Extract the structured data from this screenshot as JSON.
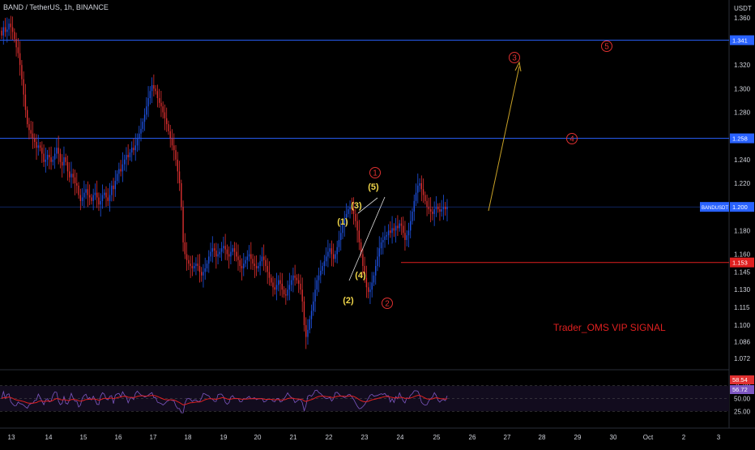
{
  "header": {
    "symbol": "BAND / TetherUS, 1h, BINANCE",
    "currency": "USDT"
  },
  "chart_data": {
    "type": "candlestick",
    "price_axis": {
      "ticks": [
        "1.360",
        "1.320",
        "1.300",
        "1.280",
        "1.240",
        "1.220",
        "1.180",
        "1.160",
        "1.145",
        "1.130",
        "1.115",
        "1.100",
        "1.086",
        "1.072"
      ],
      "range": [
        1.065,
        1.375
      ]
    },
    "x_axis": {
      "ticks": [
        "13",
        "14",
        "15",
        "16",
        "17",
        "18",
        "19",
        "20",
        "21",
        "22",
        "23",
        "24",
        "25",
        "26",
        "27",
        "28",
        "29",
        "30",
        "Oct",
        "2",
        "3"
      ]
    },
    "series": [
      {
        "name": "BAND/USDT",
        "close": [
          1.345,
          1.352,
          1.348,
          1.35,
          1.355,
          1.352,
          1.348,
          1.342,
          1.335,
          1.33,
          1.32,
          1.308,
          1.295,
          1.282,
          1.27,
          1.265,
          1.262,
          1.258,
          1.255,
          1.25,
          1.252,
          1.25,
          1.245,
          1.238,
          1.24,
          1.244,
          1.242,
          1.238,
          1.24,
          1.245,
          1.25,
          1.245,
          1.238,
          1.235,
          1.242,
          1.238,
          1.23,
          1.225,
          1.228,
          1.225,
          1.22,
          1.218,
          1.21,
          1.205,
          1.208,
          1.212,
          1.215,
          1.21,
          1.208,
          1.205,
          1.21,
          1.212,
          1.208,
          1.202,
          1.205,
          1.21,
          1.212,
          1.208,
          1.205,
          1.21,
          1.218,
          1.215,
          1.222,
          1.228,
          1.232,
          1.23,
          1.236,
          1.24,
          1.244,
          1.242,
          1.246,
          1.25,
          1.248,
          1.252,
          1.258,
          1.262,
          1.266,
          1.272,
          1.278,
          1.285,
          1.292,
          1.298,
          1.303,
          1.3,
          1.298,
          1.292,
          1.288,
          1.285,
          1.28,
          1.275,
          1.27,
          1.264,
          1.258,
          1.252,
          1.248,
          1.24,
          1.23,
          1.22,
          1.2,
          1.17,
          1.16,
          1.155,
          1.152,
          1.15,
          1.148,
          1.15,
          1.152,
          1.15,
          1.145,
          1.142,
          1.145,
          1.148,
          1.152,
          1.158,
          1.162,
          1.165,
          1.163,
          1.158,
          1.16,
          1.162,
          1.165,
          1.167,
          1.164,
          1.16,
          1.158,
          1.162,
          1.165,
          1.162,
          1.158,
          1.155,
          1.15,
          1.148,
          1.152,
          1.155,
          1.158,
          1.16,
          1.156,
          1.152,
          1.15,
          1.148,
          1.15,
          1.154,
          1.158,
          1.155,
          1.15,
          1.145,
          1.14,
          1.136,
          1.132,
          1.13,
          1.134,
          1.138,
          1.135,
          1.13,
          1.126,
          1.125,
          1.13,
          1.134,
          1.138,
          1.142,
          1.14,
          1.138,
          1.135,
          1.13,
          1.12,
          1.1,
          1.09,
          1.096,
          1.105,
          1.112,
          1.12,
          1.13,
          1.138,
          1.142,
          1.146,
          1.15,
          1.154,
          1.158,
          1.162,
          1.165,
          1.16,
          1.156,
          1.16,
          1.166,
          1.172,
          1.178,
          1.185,
          1.19,
          1.194,
          1.198,
          1.2,
          1.198,
          1.194,
          1.188,
          1.18,
          1.17,
          1.16,
          1.15,
          1.14,
          1.132,
          1.128,
          1.13,
          1.136,
          1.142,
          1.15,
          1.158,
          1.165,
          1.17,
          1.172,
          1.175,
          1.176,
          1.18,
          1.178,
          1.182,
          1.18,
          1.184,
          1.182,
          1.186,
          1.184,
          1.178,
          1.172,
          1.176,
          1.18,
          1.188,
          1.196,
          1.205,
          1.212,
          1.218,
          1.22,
          1.215,
          1.21,
          1.205,
          1.2,
          1.198,
          1.196,
          1.194,
          1.198,
          1.2,
          1.198,
          1.196,
          1.198,
          1.2,
          1.198,
          1.2
        ]
      }
    ],
    "price_labels": {
      "level_341": "1.341",
      "level_258": "1.258",
      "current_symbol": "BANDUSDT",
      "current": "1.200",
      "support": "1.153"
    },
    "wave_labels": [
      "1",
      "2",
      "3",
      "4",
      "5",
      "(1)",
      "(2)",
      "(3)",
      "(4)",
      "(5)"
    ],
    "annotation": "Trader_OMS VIP SIGNAL",
    "rsi": {
      "ticks": [
        "75.00",
        "50.00",
        "25.00"
      ],
      "value_label": "58.54",
      "ma_label": "56.72"
    },
    "colors": {
      "up": "#1e53e5",
      "down": "#e03030",
      "hline": "#2962ff",
      "support": "#e02020",
      "arrow": "#c9a227",
      "rsi": "#7e57c2",
      "rsi_ma": "#e02020"
    }
  }
}
